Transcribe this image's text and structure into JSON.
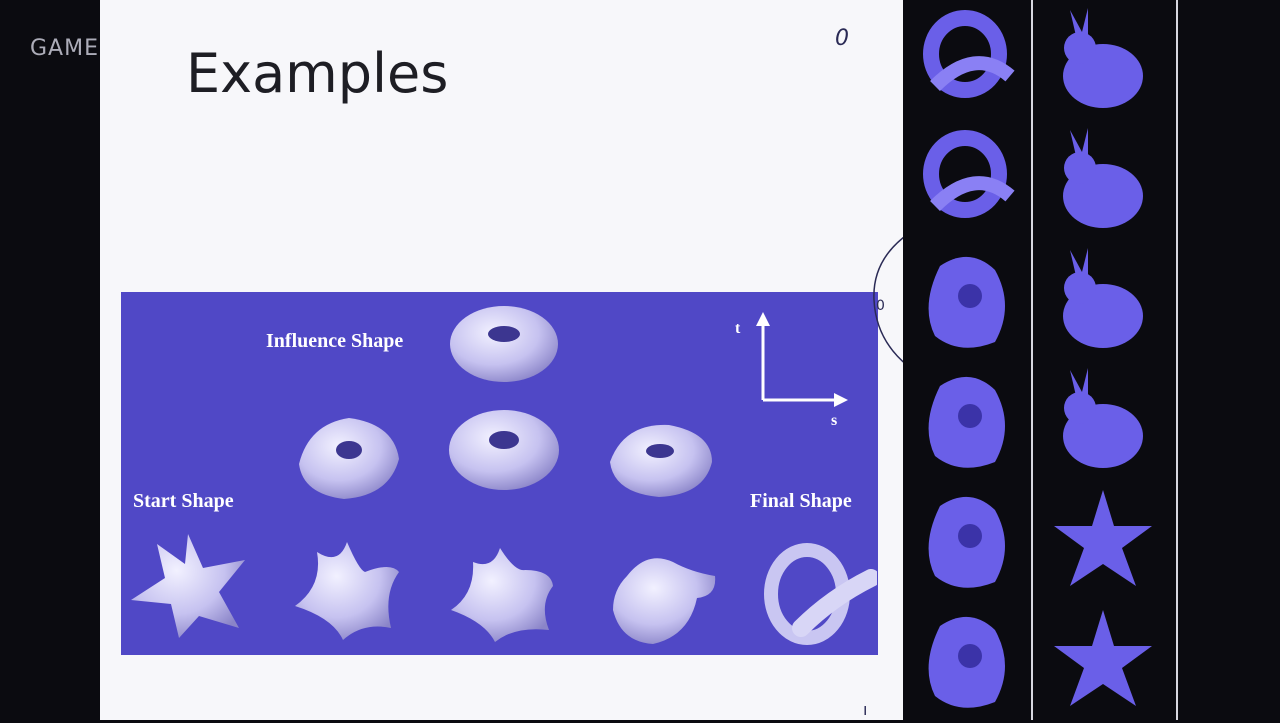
{
  "watermark": {
    "text": "GAME"
  },
  "slide": {
    "title": "Examples",
    "pen_mark": "0"
  },
  "figure": {
    "influence_label": "Influence Shape",
    "start_label": "Start Shape",
    "final_label": "Final Shape",
    "axis_t": "t",
    "axis_s": "s"
  },
  "colors": {
    "figure_bg": "#5048c6",
    "shape_fill": "#c9c6f2",
    "thumb_fill": "#6a5fe8"
  },
  "side_panel": {
    "column_1": [
      "knot-icon",
      "knot-icon",
      "blob-icon",
      "blob-icon",
      "blob-icon",
      "blob-icon"
    ],
    "column_2": [
      "bunny-icon",
      "bunny-icon",
      "bunny-icon",
      "bunny-icon",
      "star-icon",
      "star-icon"
    ]
  }
}
